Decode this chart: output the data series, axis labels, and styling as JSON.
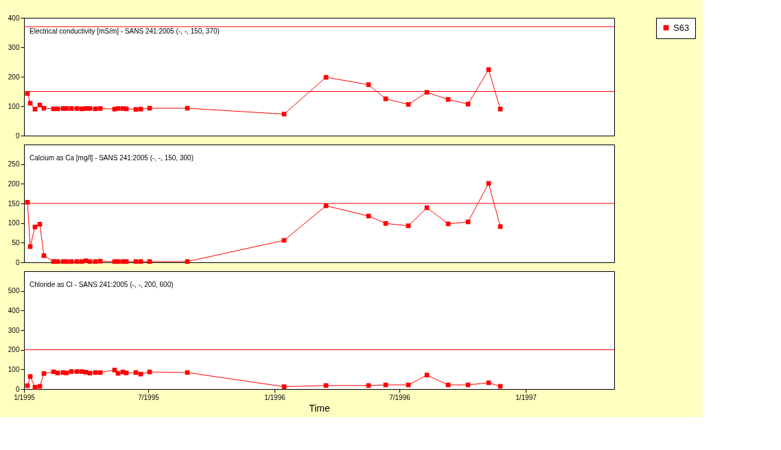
{
  "chart_data": [
    {
      "type": "line",
      "title": "Electrical conductivity [mS/m]  - SANS 241:2005 (-, -, 150, 370)",
      "x": [
        "1995-01-06",
        "1995-01-10",
        "1995-01-17",
        "1995-01-24",
        "1995-01-30",
        "1995-02-13",
        "1995-02-19",
        "1995-02-27",
        "1995-03-04",
        "1995-03-11",
        "1995-03-19",
        "1995-03-26",
        "1995-04-01",
        "1995-04-07",
        "1995-04-15",
        "1995-04-22",
        "1995-05-13",
        "1995-05-18",
        "1995-05-25",
        "1995-05-30",
        "1995-06-13",
        "1995-06-20",
        "1995-07-03",
        "1995-08-27",
        "1996-01-15",
        "1996-03-16",
        "1996-05-17",
        "1996-06-11",
        "1996-07-14",
        "1996-08-10",
        "1996-09-10",
        "1996-10-09",
        "1996-11-08",
        "1996-11-25"
      ],
      "series": [
        {
          "color": "#ff0000",
          "values": [
            143,
            110,
            90,
            104,
            93,
            91,
            91,
            92,
            92,
            92,
            92,
            91,
            92,
            92,
            91,
            92,
            90,
            92,
            92,
            91,
            89,
            90,
            93,
            93,
            73,
            198,
            173,
            125,
            106,
            147,
            123,
            107,
            224,
            90
          ]
        }
      ],
      "xlim": [
        "1995-01-01",
        "1997-05-10"
      ],
      "ylim": [
        0,
        400
      ],
      "yticks": [
        0,
        100,
        200,
        300,
        400
      ],
      "ref_lines": [
        {
          "axis": "y",
          "value": 150,
          "color": "#ff0000"
        },
        {
          "axis": "y",
          "value": 370,
          "color": "#ff0000"
        }
      ],
      "marker": "square",
      "grid": false,
      "legend": false,
      "tick_labels": "y"
    },
    {
      "type": "line",
      "title": "Calcium as Ca [mg/l]  - SANS 241:2005 (-, -, 150, 300)",
      "x": [
        "1995-01-06",
        "1995-01-10",
        "1995-01-17",
        "1995-01-24",
        "1995-01-30",
        "1995-02-13",
        "1995-02-19",
        "1995-02-27",
        "1995-03-04",
        "1995-03-11",
        "1995-03-19",
        "1995-03-26",
        "1995-04-01",
        "1995-04-07",
        "1995-04-15",
        "1995-04-22",
        "1995-05-13",
        "1995-05-18",
        "1995-05-25",
        "1995-05-30",
        "1995-06-13",
        "1995-06-20",
        "1995-07-03",
        "1995-08-27",
        "1996-01-15",
        "1996-03-16",
        "1996-05-17",
        "1996-06-11",
        "1996-07-14",
        "1996-08-10",
        "1996-09-10",
        "1996-10-09",
        "1996-11-08",
        "1996-11-25"
      ],
      "series": [
        {
          "name": "S63",
          "color": "#ff0000",
          "values": [
            153,
            40,
            90,
            97,
            17,
            2,
            2,
            2,
            2,
            2,
            2,
            2,
            4,
            2,
            2,
            3,
            2,
            2,
            2,
            2,
            2,
            2,
            2,
            2,
            56,
            144,
            118,
            99,
            93,
            139,
            98,
            103,
            201,
            91
          ]
        }
      ],
      "xlim": [
        "1995-01-01",
        "1997-05-10"
      ],
      "ylim": [
        0,
        300
      ],
      "yticks": [
        0,
        50,
        100,
        150,
        200,
        250
      ],
      "ref_lines": [
        {
          "axis": "y",
          "value": 150,
          "color": "#ff0000"
        }
      ],
      "marker": "square",
      "grid": false,
      "legend": "right",
      "tick_labels": "y"
    },
    {
      "type": "line",
      "title": "Chloride as Cl  - SANS 241:2005 (-, -, 200, 600)",
      "xlabel": "Time",
      "x": [
        "1995-01-06",
        "1995-01-10",
        "1995-01-17",
        "1995-01-24",
        "1995-01-30",
        "1995-02-13",
        "1995-02-19",
        "1995-02-27",
        "1995-03-04",
        "1995-03-11",
        "1995-03-19",
        "1995-03-26",
        "1995-04-01",
        "1995-04-07",
        "1995-04-15",
        "1995-04-22",
        "1995-05-13",
        "1995-05-18",
        "1995-05-25",
        "1995-05-30",
        "1995-06-13",
        "1995-06-20",
        "1995-07-03",
        "1995-08-27",
        "1996-01-15",
        "1996-03-16",
        "1996-05-17",
        "1996-06-11",
        "1996-07-14",
        "1996-08-10",
        "1996-09-10",
        "1996-10-09",
        "1996-11-08",
        "1996-11-25"
      ],
      "series": [
        {
          "color": "#ff0000",
          "values": [
            17,
            64,
            9,
            14,
            79,
            88,
            82,
            84,
            82,
            89,
            89,
            89,
            86,
            81,
            84,
            84,
            97,
            80,
            87,
            82,
            84,
            76,
            87,
            84,
            12,
            18,
            18,
            21,
            21,
            71,
            21,
            21,
            32,
            14
          ]
        }
      ],
      "xlim": [
        "1995-01-01",
        "1997-05-10"
      ],
      "xticks": [
        {
          "value": "1995-01-01",
          "label": "1/1995"
        },
        {
          "value": "1995-07-01",
          "label": "7/1995"
        },
        {
          "value": "1996-01-01",
          "label": "1/1996"
        },
        {
          "value": "1996-07-01",
          "label": "7/1996"
        },
        {
          "value": "1997-01-01",
          "label": "1/1997"
        }
      ],
      "ylim": [
        0,
        600
      ],
      "yticks": [
        0,
        100,
        200,
        300,
        400,
        500
      ],
      "ref_lines": [
        {
          "axis": "y",
          "value": 200,
          "color": "#ff0000"
        }
      ],
      "marker": "square",
      "grid": false,
      "legend": false
    }
  ]
}
